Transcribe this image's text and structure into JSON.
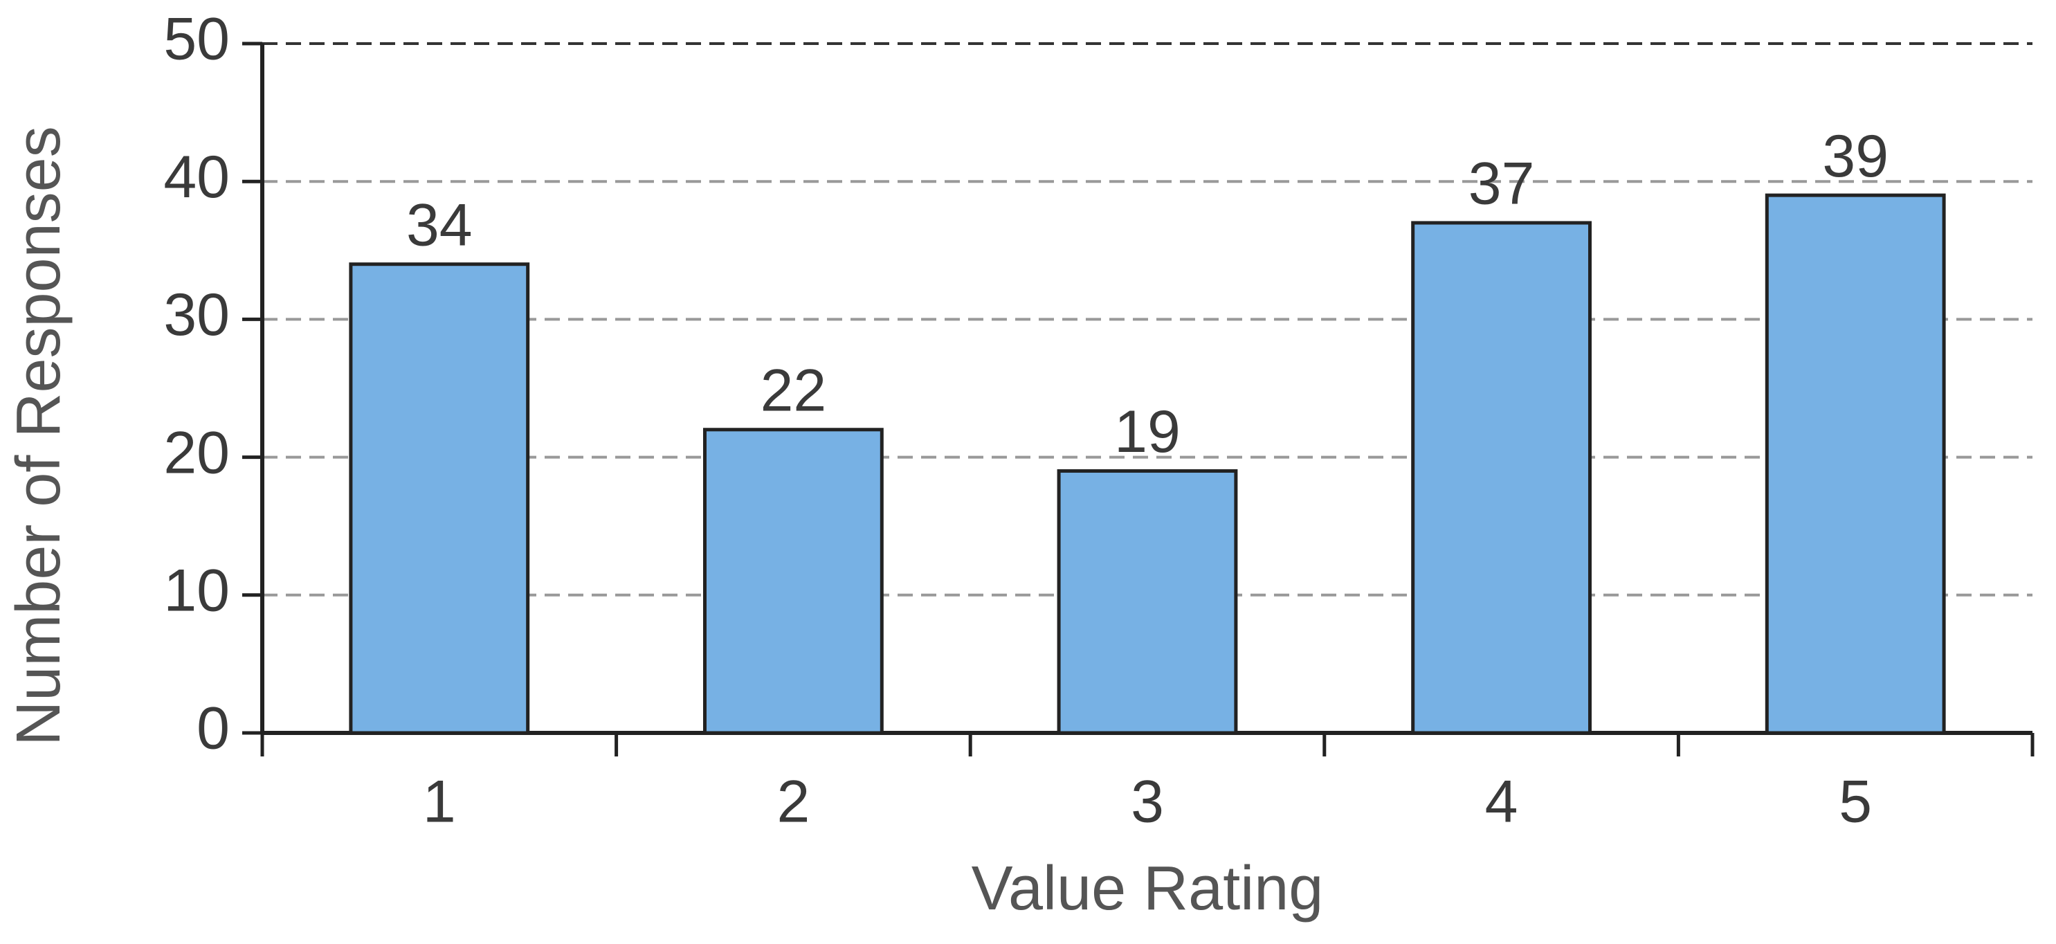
{
  "chart_data": {
    "type": "bar",
    "x_label": "Value Rating",
    "y_label": "Number of Responses",
    "categories": [
      "1",
      "2",
      "3",
      "4",
      "5"
    ],
    "values": [
      34,
      22,
      19,
      37,
      39
    ],
    "color": "#77b1e4",
    "ylim": [
      0,
      50
    ],
    "yticks": [
      0,
      10,
      20,
      30,
      40,
      50
    ],
    "grid": true
  }
}
